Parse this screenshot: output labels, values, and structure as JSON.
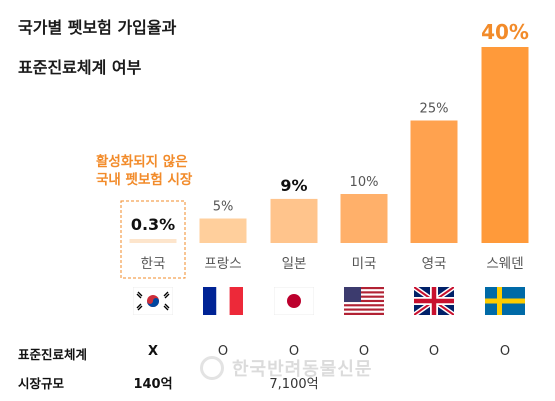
{
  "title_line1": "국가별 펫보험 가입율과",
  "title_line2": "표준진료체계 여부",
  "callout_line1": "활성화되지 않은",
  "callout_line2": "국내 펫보험 시장",
  "chart_data": {
    "type": "bar",
    "title": "국가별 펫보험 가입율과 표준진료체계 여부",
    "categories": [
      "한국",
      "프랑스",
      "일본",
      "미국",
      "영국",
      "스웨덴"
    ],
    "values": [
      0.3,
      5,
      9,
      10,
      25,
      40
    ],
    "value_labels": [
      "0.3%",
      "5%",
      "9%",
      "10%",
      "25%",
      "40%"
    ],
    "ylim": [
      0,
      40
    ],
    "grid": false,
    "colors": {
      "korea_bar": "#fde5cc",
      "bars": [
        "#fde5cc",
        "#ffcf9c",
        "#ffc48c",
        "#ffb06a",
        "#ffa24f",
        "#ff9a3a"
      ],
      "highlight_text": "#f28b2a",
      "dashed_border": "#f28b2a"
    }
  },
  "flags": [
    {
      "country": "한국",
      "icon": "korea-flag-icon"
    },
    {
      "country": "프랑스",
      "icon": "france-flag-icon"
    },
    {
      "country": "일본",
      "icon": "japan-flag-icon"
    },
    {
      "country": "미국",
      "icon": "usa-flag-icon"
    },
    {
      "country": "영국",
      "icon": "uk-flag-icon"
    },
    {
      "country": "스웨덴",
      "icon": "sweden-flag-icon"
    }
  ],
  "table": {
    "rows": [
      {
        "label": "표준진료체계",
        "values": [
          "X",
          "O",
          "O",
          "O",
          "O",
          "O"
        ]
      },
      {
        "label": "시장규모",
        "values": [
          "140억",
          "",
          "7,100억",
          "",
          "",
          ""
        ]
      }
    ]
  },
  "watermark": "한국반려동물신문"
}
